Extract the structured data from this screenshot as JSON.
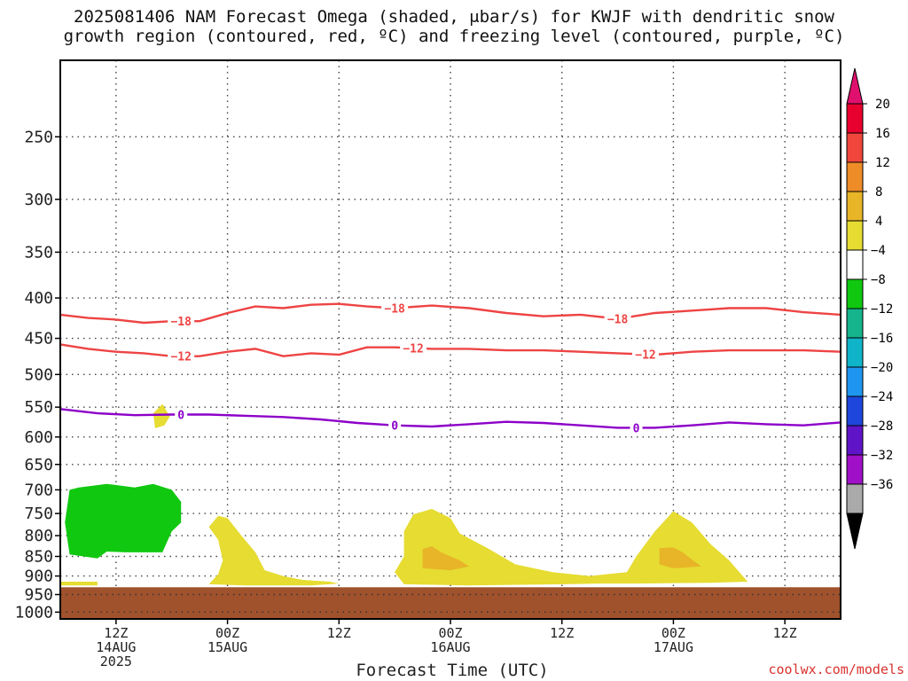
{
  "title": "2025081406 NAM Forecast Omega (shaded, μbar/s) for KWJF with dendritic snow\ngrowth region (contoured, red, ºC) and freezing level (contoured, purple, ºC)",
  "x_axis_title": "Forecast Time (UTC)",
  "credit": "coolwx.com/models",
  "chart_data": {
    "type": "time-height contour/shaded",
    "title": "2025081406 NAM Forecast Omega (shaded, μbar/s) for KWJF with dendritic snow growth region (contoured, red, ºC) and freezing level (contoured, purple, ºC)",
    "xlabel": "Forecast Time (UTC)",
    "ylabel": "",
    "x_range_hours": [
      0,
      84
    ],
    "y_scale": "log-pressure",
    "y_range_hpa": [
      1000,
      200
    ],
    "y_ticks": [
      250,
      300,
      350,
      400,
      450,
      500,
      550,
      600,
      650,
      700,
      750,
      800,
      850,
      900,
      950,
      1000
    ],
    "x_ticks": [
      {
        "hour": 6,
        "lines": [
          "12Z",
          "14AUG",
          "2025"
        ]
      },
      {
        "hour": 18,
        "lines": [
          "00Z",
          "15AUG"
        ]
      },
      {
        "hour": 30,
        "lines": [
          "12Z"
        ]
      },
      {
        "hour": 42,
        "lines": [
          "00Z",
          "16AUG"
        ]
      },
      {
        "hour": 54,
        "lines": [
          "12Z"
        ]
      },
      {
        "hour": 66,
        "lines": [
          "00Z",
          "17AUG"
        ]
      },
      {
        "hour": 78,
        "lines": [
          "12Z"
        ]
      }
    ],
    "grid": true,
    "ground_pressure_hpa": 930,
    "ground_color": "#a0522d",
    "colorbar": {
      "position": "right",
      "labels": [
        "20",
        "16",
        "12",
        "8",
        "4",
        "−4",
        "−8",
        "−12",
        "−16",
        "−20",
        "−24",
        "−28",
        "−32",
        "−36"
      ],
      "colors": [
        "#e8002e",
        "#f0463c",
        "#ee8c28",
        "#e8b428",
        "#e6dc32",
        "#ffffff",
        "#10c810",
        "#16b48c",
        "#10b4c8",
        "#1e96f0",
        "#1e46dc",
        "#6014c8",
        "#a010c8",
        "#aaaaaa"
      ],
      "top_arrow_color": "#e0106e",
      "bottom_arrow_color": "#000000"
    },
    "contours": [
      {
        "label": "−18",
        "color": "#ee4444",
        "label_hours": [
          13,
          36,
          60
        ],
        "points": [
          [
            0,
            420
          ],
          [
            3,
            424
          ],
          [
            6,
            426
          ],
          [
            9,
            430
          ],
          [
            12,
            428
          ],
          [
            15,
            428
          ],
          [
            18,
            418
          ],
          [
            21,
            410
          ],
          [
            24,
            412
          ],
          [
            27,
            408
          ],
          [
            30,
            407
          ],
          [
            33,
            410
          ],
          [
            36,
            412
          ],
          [
            40,
            409
          ],
          [
            44,
            412
          ],
          [
            48,
            418
          ],
          [
            52,
            422
          ],
          [
            56,
            420
          ],
          [
            60,
            425
          ],
          [
            64,
            418
          ],
          [
            68,
            415
          ],
          [
            72,
            412
          ],
          [
            76,
            412
          ],
          [
            80,
            417
          ],
          [
            84,
            420
          ]
        ]
      },
      {
        "label": "−12",
        "color": "#ee4444",
        "label_hours": [
          13,
          38,
          63
        ],
        "points": [
          [
            0,
            458
          ],
          [
            3,
            464
          ],
          [
            6,
            468
          ],
          [
            9,
            470
          ],
          [
            12,
            474
          ],
          [
            15,
            474
          ],
          [
            18,
            468
          ],
          [
            21,
            464
          ],
          [
            24,
            474
          ],
          [
            27,
            470
          ],
          [
            30,
            472
          ],
          [
            33,
            462
          ],
          [
            36,
            462
          ],
          [
            40,
            464
          ],
          [
            44,
            464
          ],
          [
            48,
            466
          ],
          [
            52,
            466
          ],
          [
            56,
            468
          ],
          [
            60,
            470
          ],
          [
            64,
            472
          ],
          [
            68,
            468
          ],
          [
            72,
            466
          ],
          [
            76,
            466
          ],
          [
            80,
            466
          ],
          [
            84,
            468
          ]
        ]
      },
      {
        "label": "0",
        "color": "#8c00c8",
        "label_hours": [
          13,
          36,
          62
        ],
        "points": [
          [
            0,
            553
          ],
          [
            4,
            560
          ],
          [
            8,
            563
          ],
          [
            12,
            562
          ],
          [
            16,
            562
          ],
          [
            20,
            564
          ],
          [
            24,
            566
          ],
          [
            28,
            570
          ],
          [
            32,
            576
          ],
          [
            36,
            580
          ],
          [
            40,
            582
          ],
          [
            44,
            578
          ],
          [
            48,
            574
          ],
          [
            52,
            576
          ],
          [
            56,
            580
          ],
          [
            60,
            584
          ],
          [
            64,
            584
          ],
          [
            68,
            580
          ],
          [
            72,
            575
          ],
          [
            76,
            578
          ],
          [
            80,
            580
          ],
          [
            84,
            575
          ]
        ]
      }
    ],
    "shaded_regions": [
      {
        "value_range": "-8 to -4",
        "color": "#10c810",
        "points": [
          [
            2,
            695
          ],
          [
            5,
            688
          ],
          [
            8,
            695
          ],
          [
            10,
            688
          ],
          [
            12,
            700
          ],
          [
            13,
            725
          ],
          [
            13,
            770
          ],
          [
            12,
            790
          ],
          [
            11,
            840
          ],
          [
            7,
            840
          ],
          [
            5,
            838
          ],
          [
            4,
            855
          ],
          [
            1,
            845
          ],
          [
            0.5,
            770
          ],
          [
            1,
            700
          ]
        ]
      },
      {
        "value_range": "4 to 8",
        "color": "#e6dc32",
        "points": [
          [
            10,
            560
          ],
          [
            11,
            545
          ],
          [
            11.8,
            565
          ],
          [
            11.2,
            580
          ],
          [
            10.2,
            585
          ]
        ]
      },
      {
        "value_range": "4 to 8",
        "color": "#e6dc32",
        "points": [
          [
            16,
            780
          ],
          [
            17,
            755
          ],
          [
            18,
            760
          ],
          [
            19.5,
            800
          ],
          [
            21,
            840
          ],
          [
            22,
            885
          ],
          [
            24,
            900
          ],
          [
            26,
            910
          ],
          [
            29,
            915
          ],
          [
            30,
            920
          ],
          [
            27,
            925
          ],
          [
            20,
            925
          ],
          [
            16,
            922
          ],
          [
            17,
            895
          ],
          [
            17.5,
            860
          ],
          [
            17,
            810
          ]
        ]
      },
      {
        "value_range": "4 to 8",
        "color": "#e6dc32",
        "points": [
          [
            36,
            890
          ],
          [
            37,
            850
          ],
          [
            37,
            790
          ],
          [
            38,
            752
          ],
          [
            40,
            740
          ],
          [
            42,
            760
          ],
          [
            43,
            795
          ],
          [
            46,
            830
          ],
          [
            49,
            870
          ],
          [
            53,
            890
          ],
          [
            57,
            900
          ],
          [
            59,
            895
          ],
          [
            61,
            890
          ],
          [
            62,
            850
          ],
          [
            64,
            790
          ],
          [
            66,
            745
          ],
          [
            68,
            770
          ],
          [
            70,
            820
          ],
          [
            72,
            860
          ],
          [
            74,
            915
          ],
          [
            70,
            918
          ],
          [
            62,
            920
          ],
          [
            58,
            920
          ],
          [
            54,
            922
          ],
          [
            44,
            925
          ],
          [
            37,
            922
          ]
        ]
      },
      {
        "value_range": "4 to 8",
        "color": "#e6dc32",
        "points": [
          [
            0,
            915
          ],
          [
            4,
            915
          ],
          [
            4,
            925
          ],
          [
            0,
            925
          ]
        ]
      },
      {
        "value_range": "8 to 12",
        "color": "#e8b428",
        "points": [
          [
            39,
            832
          ],
          [
            40,
            825
          ],
          [
            41,
            840
          ],
          [
            43,
            860
          ],
          [
            44,
            875
          ],
          [
            42,
            885
          ],
          [
            39,
            880
          ]
        ]
      },
      {
        "value_range": "8 to 12",
        "color": "#e8b428",
        "points": [
          [
            64.5,
            830
          ],
          [
            66,
            828
          ],
          [
            67,
            840
          ],
          [
            68,
            858
          ],
          [
            69,
            875
          ],
          [
            66,
            880
          ],
          [
            64.5,
            870
          ]
        ]
      }
    ]
  }
}
